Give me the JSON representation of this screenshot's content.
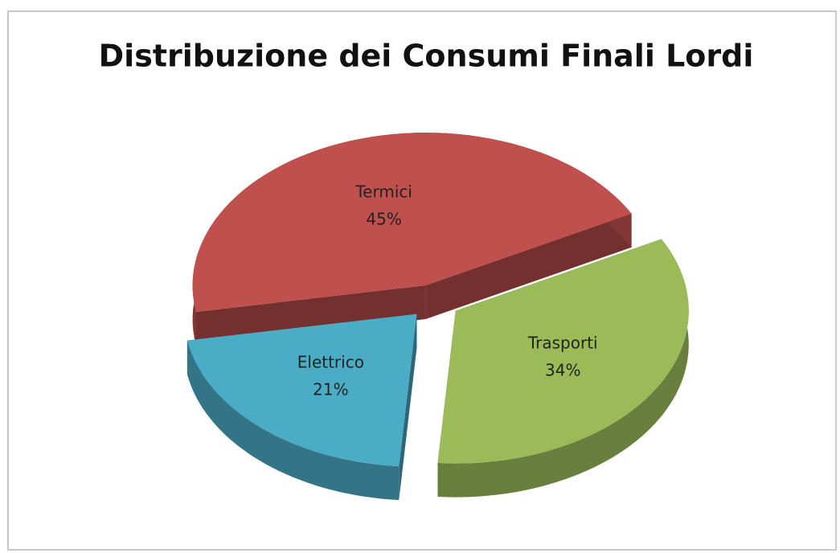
{
  "chart_data": {
    "type": "pie",
    "title": "Distribuzione dei Consumi Finali Lordi",
    "categories": [
      "Termici",
      "Trasporti",
      "Elettrico"
    ],
    "values": [
      45,
      34,
      21
    ],
    "value_labels": [
      "45%",
      "34%",
      "21%"
    ],
    "colors": [
      "#c0504d",
      "#9bbb59",
      "#4bacc6"
    ]
  }
}
